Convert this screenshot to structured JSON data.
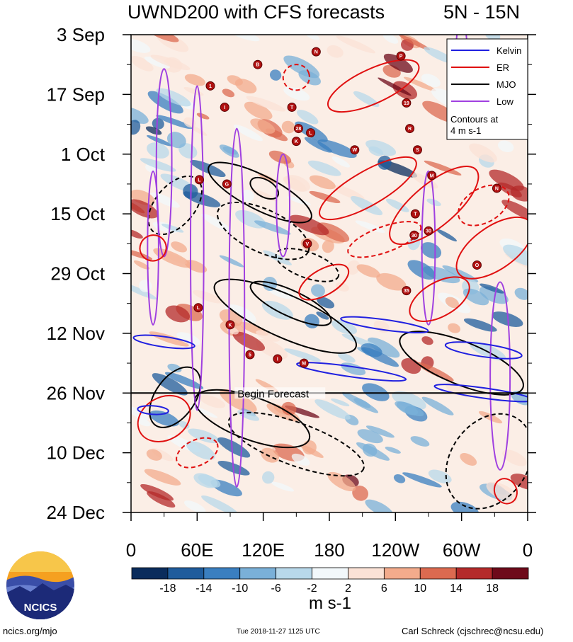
{
  "header": {
    "title": "UWND200 with CFS forecasts",
    "region": "5N - 15N"
  },
  "chart_data": {
    "type": "heatmap",
    "title": "UWND200 with CFS forecasts",
    "subtitle": "5N - 15N",
    "x_ticks": [
      "0",
      "60E",
      "120E",
      "180",
      "120W",
      "60W",
      "0"
    ],
    "x_values": [
      0,
      60,
      120,
      180,
      240,
      300,
      360
    ],
    "xlim": [
      0,
      360
    ],
    "y_ticks": [
      "3 Sep",
      "17 Sep",
      "1 Oct",
      "15 Oct",
      "29 Oct",
      "12 Nov",
      "26 Nov",
      "10 Dec",
      "24 Dec"
    ],
    "y_days": [
      0,
      14,
      28,
      42,
      56,
      70,
      84,
      98,
      112
    ],
    "ylim": [
      0,
      112
    ],
    "forecast_start_day": 84,
    "forecast_label": "Begin Forecast",
    "legend": [
      {
        "label": "Kelvin",
        "color": "#2020e0"
      },
      {
        "label": "ER",
        "color": "#e01010"
      },
      {
        "label": "MJO",
        "color": "#000000"
      },
      {
        "label": "Low",
        "color": "#a040e0"
      }
    ],
    "legend_note": "Contours at 4 m s-1",
    "legend_placement": "top-right",
    "colorbar": {
      "labels": [
        "-18",
        "-14",
        "-10",
        "-6",
        "-2",
        "2",
        "6",
        "10",
        "14",
        "18"
      ],
      "colors": [
        "#0a2c5c",
        "#1f5c9c",
        "#3a7fc0",
        "#7ab0d8",
        "#b8d8ea",
        "#f2f8fb",
        "#fbe2d6",
        "#f3ab8c",
        "#dc6a50",
        "#b42a2a",
        "#6e0a1a"
      ],
      "units": "m s-1"
    },
    "storms": [
      {
        "label": "B",
        "lon": 115,
        "day": 7
      },
      {
        "label": "1",
        "lon": 72,
        "day": 12
      },
      {
        "label": "I",
        "lon": 85,
        "day": 17
      },
      {
        "label": "T",
        "lon": 146,
        "day": 17
      },
      {
        "label": "N",
        "lon": 168,
        "day": 4
      },
      {
        "label": "P",
        "lon": 245,
        "day": 5
      },
      {
        "label": "19",
        "lon": 250,
        "day": 16
      },
      {
        "label": "R",
        "lon": 253,
        "day": 22
      },
      {
        "label": "28",
        "lon": 152,
        "day": 22
      },
      {
        "label": "L",
        "lon": 163,
        "day": 23
      },
      {
        "label": "K",
        "lon": 150,
        "day": 25
      },
      {
        "label": "W",
        "lon": 203,
        "day": 27
      },
      {
        "label": "S",
        "lon": 260,
        "day": 27
      },
      {
        "label": "M",
        "lon": 273,
        "day": 33
      },
      {
        "label": "L",
        "lon": 62,
        "day": 34
      },
      {
        "label": "G",
        "lon": 87,
        "day": 35
      },
      {
        "label": "N",
        "lon": 332,
        "day": 36
      },
      {
        "label": "T",
        "lon": 258,
        "day": 42
      },
      {
        "label": "30",
        "lon": 257,
        "day": 47
      },
      {
        "label": "30",
        "lon": 270,
        "day": 46
      },
      {
        "label": "V",
        "lon": 160,
        "day": 49
      },
      {
        "label": "O",
        "lon": 314,
        "day": 54
      },
      {
        "label": "35",
        "lon": 250,
        "day": 60
      },
      {
        "label": "L",
        "lon": 61,
        "day": 64
      },
      {
        "label": "K",
        "lon": 90,
        "day": 68
      },
      {
        "label": "5",
        "lon": 108,
        "day": 75
      },
      {
        "label": "I",
        "lon": 133,
        "day": 76
      },
      {
        "label": "M",
        "lon": 157,
        "day": 77
      }
    ]
  },
  "footer": {
    "site": "ncics.org/mjo",
    "timestamp": "Tue 2018-11-27 1125 UTC",
    "author": "Carl Schreck (cjschrec@ncsu.edu)"
  },
  "logo": {
    "text": "NCICS"
  }
}
